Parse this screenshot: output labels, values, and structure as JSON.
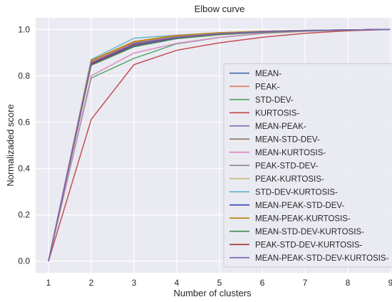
{
  "chart_data": {
    "type": "line",
    "title": "Elbow curve",
    "xlabel": "Number of clusters",
    "ylabel": "Normalizaded score",
    "x": [
      1,
      2,
      3,
      4,
      5,
      6,
      7,
      8,
      9
    ],
    "xlim": [
      0.7,
      9.3
    ],
    "ylim": [
      -0.05,
      1.05
    ],
    "xticks": [
      "1",
      "2",
      "3",
      "4",
      "5",
      "6",
      "7",
      "8",
      "9"
    ],
    "yticks": [
      "0.0",
      "0.2",
      "0.4",
      "0.6",
      "0.8",
      "1.0"
    ],
    "grid": true,
    "legend_position": "lower-right",
    "series": [
      {
        "name": "MEAN-",
        "color": "#4c72b0",
        "values": [
          0,
          0.858,
          0.94,
          0.968,
          0.982,
          0.99,
          0.995,
          0.998,
          1.0
        ]
      },
      {
        "name": "PEAK-",
        "color": "#dd8452",
        "values": [
          0,
          0.862,
          0.945,
          0.972,
          0.985,
          0.992,
          0.996,
          0.998,
          1.0
        ]
      },
      {
        "name": "STD-DEV-",
        "color": "#55a868",
        "values": [
          0,
          0.79,
          0.875,
          0.938,
          0.965,
          0.982,
          0.992,
          0.997,
          1.0
        ]
      },
      {
        "name": "KURTOSIS-",
        "color": "#c44e52",
        "values": [
          0,
          0.612,
          0.848,
          0.91,
          0.942,
          0.966,
          0.983,
          0.994,
          1.0
        ]
      },
      {
        "name": "MEAN-PEAK-",
        "color": "#8172b3",
        "values": [
          0,
          0.85,
          0.93,
          0.962,
          0.978,
          0.988,
          0.994,
          0.998,
          1.0
        ]
      },
      {
        "name": "MEAN-STD-DEV-",
        "color": "#937860",
        "values": [
          0,
          0.852,
          0.932,
          0.964,
          0.98,
          0.989,
          0.994,
          0.998,
          1.0
        ]
      },
      {
        "name": "MEAN-KURTOSIS-",
        "color": "#da8bc3",
        "values": [
          0,
          0.8,
          0.898,
          0.94,
          0.966,
          0.983,
          0.992,
          0.997,
          1.0
        ]
      },
      {
        "name": "PEAK-STD-DEV-",
        "color": "#8c8c8c",
        "values": [
          0,
          0.855,
          0.935,
          0.966,
          0.981,
          0.99,
          0.995,
          0.998,
          1.0
        ]
      },
      {
        "name": "PEAK-KURTOSIS-",
        "color": "#ccb974",
        "values": [
          0,
          0.858,
          0.938,
          0.967,
          0.982,
          0.99,
          0.995,
          0.998,
          1.0
        ]
      },
      {
        "name": "STD-DEV-KURTOSIS-",
        "color": "#64b5cd",
        "values": [
          0,
          0.87,
          0.962,
          0.975,
          0.985,
          0.992,
          0.996,
          0.998,
          1.0
        ]
      },
      {
        "name": "MEAN-PEAK-STD-DEV-",
        "color": "#3b4cc0",
        "values": [
          0,
          0.848,
          0.928,
          0.962,
          0.978,
          0.988,
          0.994,
          0.998,
          1.0
        ]
      },
      {
        "name": "MEAN-PEAK-KURTOSIS-",
        "color": "#b8860b",
        "values": [
          0,
          0.866,
          0.948,
          0.974,
          0.986,
          0.992,
          0.996,
          0.998,
          1.0
        ]
      },
      {
        "name": "MEAN-STD-DEV-KURTOSIS-",
        "color": "#4d8c57",
        "values": [
          0,
          0.845,
          0.925,
          0.96,
          0.977,
          0.987,
          0.993,
          0.997,
          1.0
        ]
      },
      {
        "name": "PEAK-STD-DEV-KURTOSIS-",
        "color": "#a23b3b",
        "values": [
          0,
          0.852,
          0.935,
          0.966,
          0.981,
          0.99,
          0.995,
          0.998,
          1.0
        ]
      },
      {
        "name": "MEAN-PEAK-STD-DEV-KURTOSIS-",
        "color": "#7b68c4",
        "values": [
          0,
          0.857,
          0.938,
          0.967,
          0.982,
          0.99,
          0.995,
          0.998,
          1.0
        ]
      }
    ]
  }
}
